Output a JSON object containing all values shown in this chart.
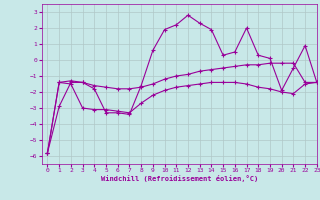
{
  "xlabel": "Windchill (Refroidissement éolien,°C)",
  "xlim": [
    -0.5,
    23
  ],
  "ylim": [
    -6.5,
    3.5
  ],
  "yticks": [
    -6,
    -5,
    -4,
    -3,
    -2,
    -1,
    0,
    1,
    2,
    3
  ],
  "xticks": [
    0,
    1,
    2,
    3,
    4,
    5,
    6,
    7,
    8,
    9,
    10,
    11,
    12,
    13,
    14,
    15,
    16,
    17,
    18,
    19,
    20,
    21,
    22,
    23
  ],
  "bg_color": "#c8e8e8",
  "line_color": "#990099",
  "grid_color": "#b0c8c8",
  "line_width": 0.8,
  "marker": "+",
  "marker_size": 3,
  "series": [
    {
      "x": [
        0,
        1,
        2,
        3,
        4,
        5,
        6,
        7,
        8,
        9,
        10,
        11,
        12,
        13,
        14,
        15,
        16,
        17,
        18,
        19,
        20,
        21,
        22,
        23
      ],
      "y": [
        -5.8,
        -2.9,
        -1.4,
        -1.4,
        -1.8,
        -3.3,
        -3.3,
        -3.4,
        -1.6,
        0.6,
        1.9,
        2.2,
        2.8,
        2.3,
        1.9,
        0.3,
        0.5,
        2.0,
        0.3,
        0.1,
        -1.9,
        -0.5,
        0.9,
        -1.4
      ]
    },
    {
      "x": [
        0,
        1,
        2,
        3,
        4,
        5,
        6,
        7,
        8,
        9,
        10,
        11,
        12,
        13,
        14,
        15,
        16,
        17,
        18,
        19,
        20,
        21,
        22,
        23
      ],
      "y": [
        -5.8,
        -1.4,
        -1.3,
        -1.4,
        -1.6,
        -1.7,
        -1.8,
        -1.8,
        -1.7,
        -1.5,
        -1.2,
        -1.0,
        -0.9,
        -0.7,
        -0.6,
        -0.5,
        -0.4,
        -0.3,
        -0.3,
        -0.2,
        -0.2,
        -0.2,
        -1.4,
        -1.4
      ]
    },
    {
      "x": [
        0,
        1,
        2,
        3,
        4,
        5,
        6,
        7,
        8,
        9,
        10,
        11,
        12,
        13,
        14,
        15,
        16,
        17,
        18,
        19,
        20,
        21,
        22,
        23
      ],
      "y": [
        -5.8,
        -1.4,
        -1.5,
        -3.0,
        -3.1,
        -3.1,
        -3.2,
        -3.3,
        -2.7,
        -2.2,
        -1.9,
        -1.7,
        -1.6,
        -1.5,
        -1.4,
        -1.4,
        -1.4,
        -1.5,
        -1.7,
        -1.8,
        -2.0,
        -2.1,
        -1.5,
        -1.4
      ]
    }
  ]
}
